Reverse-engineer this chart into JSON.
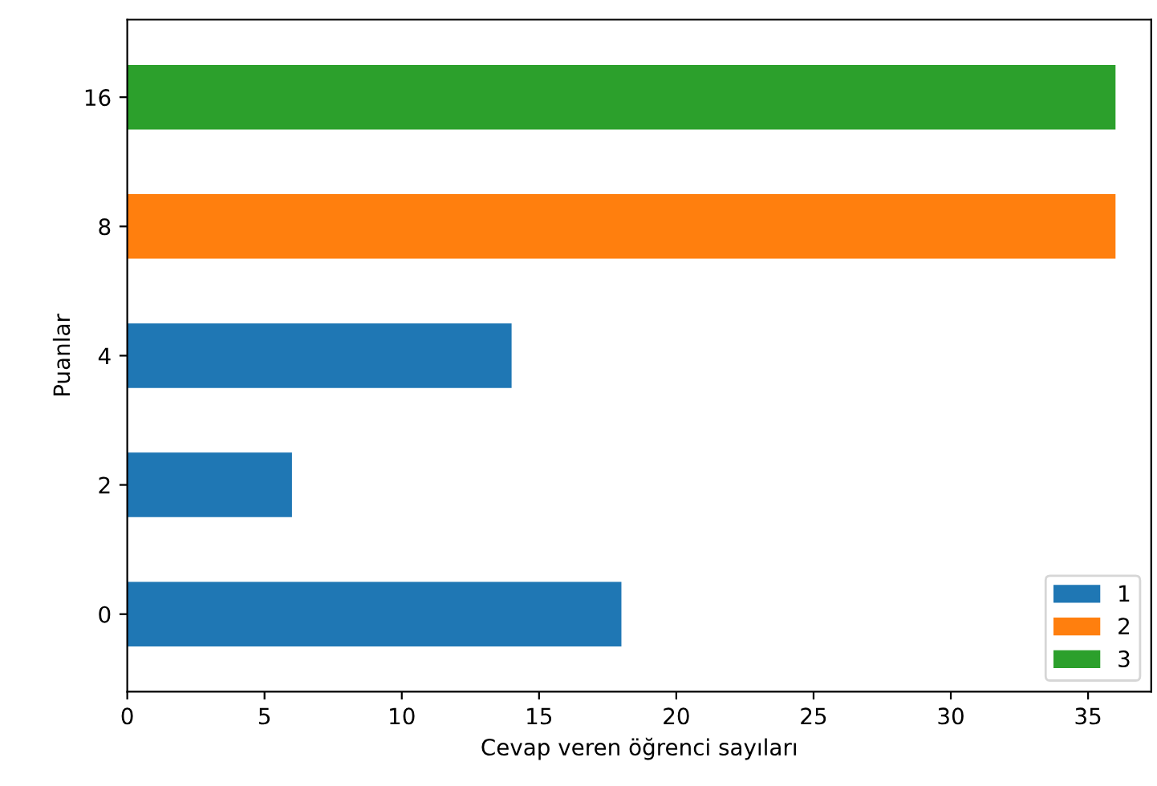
{
  "chart_data": {
    "type": "bar",
    "orientation": "horizontal",
    "xlabel": "Cevap veren öğrenci sayıları",
    "ylabel": "Puanlar",
    "categories": [
      "16",
      "8",
      "4",
      "2",
      "0"
    ],
    "series": [
      {
        "name": "1",
        "color": "#1f77b4",
        "values": [
          null,
          null,
          14,
          6,
          18
        ]
      },
      {
        "name": "2",
        "color": "#ff7f0e",
        "values": [
          null,
          36,
          null,
          null,
          null
        ]
      },
      {
        "name": "3",
        "color": "#2ca02c",
        "values": [
          36,
          null,
          null,
          null,
          null
        ]
      }
    ],
    "xlim": [
      0,
      37.3
    ],
    "xticks": [
      0,
      5,
      10,
      15,
      20,
      25,
      30,
      35
    ],
    "grid": false,
    "legend": "lower right"
  }
}
